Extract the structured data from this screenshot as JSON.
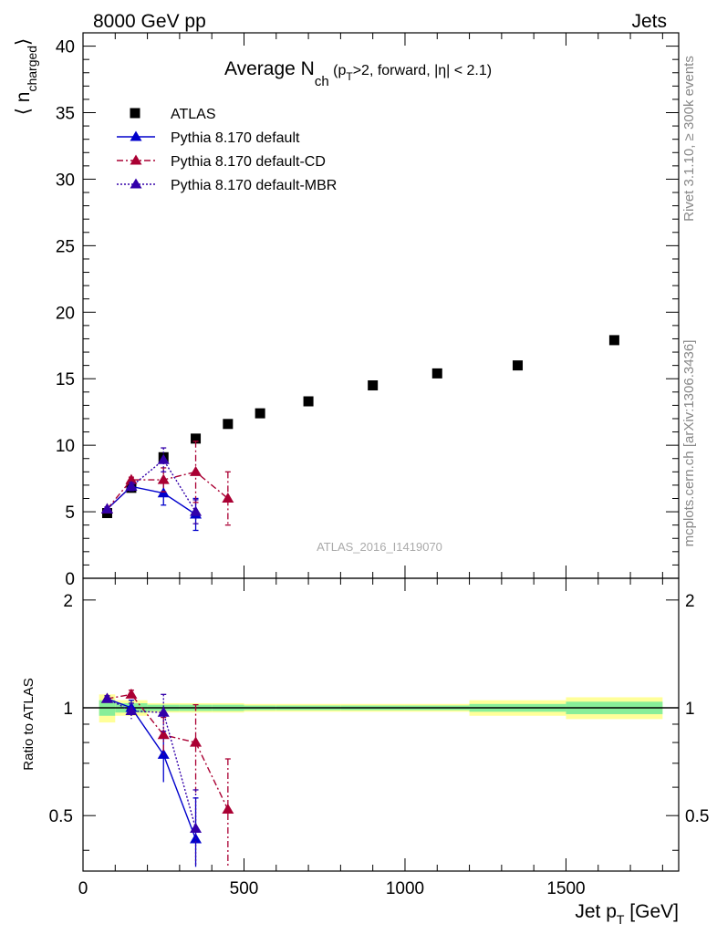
{
  "header": {
    "left": "8000 GeV pp",
    "right": "Jets"
  },
  "title": {
    "main": "Average N",
    "sub": "ch",
    "rest1": " (p",
    "rest_sub": "T",
    "rest2": ">2, forward, |η| < 2.1)"
  },
  "side_text": {
    "rivet": "Rivet 3.1.10, ≥ 300k events",
    "mcplots": "mcplots.cern.ch [arXiv:1306.3436]"
  },
  "watermark": "ATLAS_2016_I1419070",
  "axes": {
    "ylabel_main": "⟨ n",
    "ylabel_sub": "charged",
    "ylabel_close": "⟩",
    "ylabel_ratio": "Ratio to ATLAS",
    "xlabel_main": "Jet p",
    "xlabel_sub": "T",
    "xlabel_unit": " [GeV]"
  },
  "colors": {
    "data": "#000000",
    "default": "#0000cc",
    "cd": "#aa0033",
    "mbr": "#3300aa",
    "band_inner": "#88ee99",
    "band_outer": "#ffff99"
  },
  "chart_data": [
    {
      "type": "scatter",
      "panel": "main",
      "xlim": [
        0,
        1850
      ],
      "ylim": [
        0,
        41
      ],
      "xticks": [
        0,
        500,
        1000,
        1500
      ],
      "yticks": [
        0,
        5,
        10,
        15,
        20,
        25,
        30,
        35,
        40
      ],
      "legend_position": "top-left",
      "series": [
        {
          "name": "ATLAS",
          "style": "square",
          "x": [
            75,
            150,
            250,
            350,
            450,
            550,
            700,
            900,
            1100,
            1350,
            1650
          ],
          "y": [
            4.9,
            6.8,
            9.1,
            10.5,
            11.6,
            12.4,
            13.3,
            14.5,
            15.4,
            16.0,
            17.9
          ],
          "xerr": [
            25,
            50,
            50,
            50,
            50,
            50,
            100,
            100,
            100,
            150,
            150
          ]
        },
        {
          "name": "Pythia 8.170 default",
          "style": "solid",
          "x": [
            75,
            150,
            250,
            350
          ],
          "y": [
            5.2,
            6.9,
            6.4,
            4.8
          ],
          "yerr": [
            0.15,
            0.3,
            0.9,
            1.2
          ]
        },
        {
          "name": "Pythia 8.170 default-CD",
          "style": "dashdot",
          "x": [
            75,
            150,
            250,
            350,
            450
          ],
          "y": [
            5.2,
            7.4,
            7.4,
            8.0,
            6.0
          ],
          "yerr": [
            0.15,
            0.2,
            0.9,
            2.3,
            2.0
          ]
        },
        {
          "name": "Pythia 8.170 default-MBR",
          "style": "dotted",
          "x": [
            75,
            150,
            250,
            350
          ],
          "y": [
            5.2,
            6.9,
            8.9,
            5.0
          ],
          "yerr": [
            0.15,
            0.3,
            0.9,
            0.9
          ]
        }
      ]
    },
    {
      "type": "line",
      "panel": "ratio",
      "xlim": [
        0,
        1850
      ],
      "ylim": [
        0.35,
        2.3
      ],
      "yticks": [
        0.5,
        1,
        2
      ],
      "ytick_labels": [
        "0.5",
        "1",
        "2"
      ],
      "band": {
        "x_edges": [
          50,
          100,
          200,
          300,
          400,
          500,
          600,
          800,
          1000,
          1200,
          1500,
          1800
        ],
        "inner": [
          0.05,
          0.03,
          0.02,
          0.02,
          0.02,
          0.015,
          0.015,
          0.015,
          0.015,
          0.025,
          0.04
        ],
        "outer": [
          0.09,
          0.05,
          0.03,
          0.03,
          0.03,
          0.025,
          0.025,
          0.025,
          0.025,
          0.05,
          0.07
        ]
      },
      "series": [
        {
          "name": "Pythia 8.170 default",
          "x": [
            75,
            150,
            250,
            350
          ],
          "y": [
            1.06,
            1.0,
            0.74,
            0.43
          ],
          "yerr": [
            0.02,
            0.05,
            0.12,
            0.13
          ]
        },
        {
          "name": "Pythia 8.170 default-CD",
          "x": [
            75,
            150,
            250,
            350,
            450
          ],
          "y": [
            1.06,
            1.09,
            0.84,
            0.8,
            0.52
          ],
          "yerr": [
            0.02,
            0.03,
            0.1,
            0.22,
            0.2
          ]
        },
        {
          "name": "Pythia 8.170 default-MBR",
          "x": [
            75,
            150,
            250,
            350
          ],
          "y": [
            1.06,
            0.98,
            0.97,
            0.46
          ],
          "yerr": [
            0.02,
            0.05,
            0.12,
            0.13
          ]
        }
      ]
    }
  ]
}
